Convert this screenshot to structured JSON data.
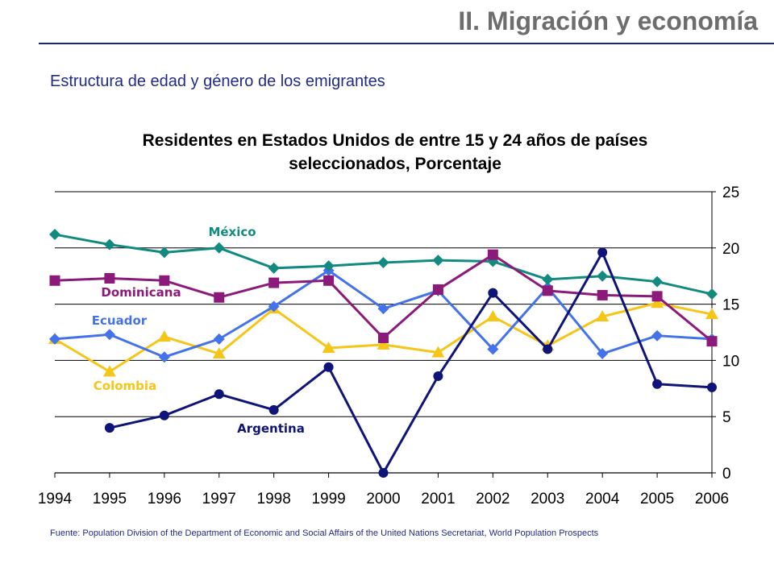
{
  "slide": {
    "title": "II. Migración y economía",
    "subtitle": "Estructura de edad y género de los emigrantes",
    "source": "Fuente: Population Division of the Department of Economic and Social Affairs of the United Nations Secretariat,  World Population Prospects"
  },
  "chart_data": {
    "type": "line",
    "title": "Residentes en Estados Unidos de entre 15 y 24 años de países seleccionados, Porcentaje",
    "title_lines": [
      "Residentes en Estados Unidos de entre 15 y 24 años de países",
      "seleccionados, Porcentaje"
    ],
    "x": [
      "1994",
      "1995",
      "1996",
      "1997",
      "1998",
      "1999",
      "2000",
      "2001",
      "2002",
      "2003",
      "2004",
      "2005",
      "2006"
    ],
    "ylim": [
      0,
      25
    ],
    "yticks": [
      "0",
      "5",
      "10",
      "15",
      "20",
      "25"
    ],
    "y_axis_side": "right",
    "grid": "horizontal",
    "legend": "inline labels",
    "series": [
      {
        "name": "México",
        "color": "#138a80",
        "marker": "diamond",
        "values": [
          21.2,
          20.3,
          19.6,
          20.0,
          18.2,
          18.4,
          18.7,
          18.9,
          18.8,
          17.2,
          17.5,
          17.0,
          15.9
        ]
      },
      {
        "name": "Dominicana",
        "color": "#8b1a7a",
        "marker": "square",
        "values": [
          17.1,
          17.3,
          17.1,
          15.6,
          16.9,
          17.1,
          12.0,
          16.3,
          19.4,
          16.2,
          15.8,
          15.7,
          11.7
        ]
      },
      {
        "name": "Ecuador",
        "color": "#4472e8",
        "marker": "diamond",
        "values": [
          11.9,
          12.3,
          10.3,
          11.9,
          14.8,
          18.0,
          14.6,
          16.2,
          11.0,
          16.5,
          10.6,
          12.2,
          11.9
        ]
      },
      {
        "name": "Colombia",
        "color": "#f5c518",
        "marker": "triangle",
        "values": [
          11.9,
          9.0,
          12.1,
          10.6,
          14.6,
          11.1,
          11.4,
          10.7,
          13.9,
          11.3,
          13.9,
          15.1,
          14.1
        ]
      },
      {
        "name": "Argentina",
        "color": "#0f1478",
        "marker": "circle",
        "values": [
          null,
          4.0,
          5.1,
          7.0,
          5.6,
          9.4,
          0.0,
          8.6,
          16.0,
          11.0,
          19.6,
          7.9,
          7.6
        ]
      }
    ]
  }
}
